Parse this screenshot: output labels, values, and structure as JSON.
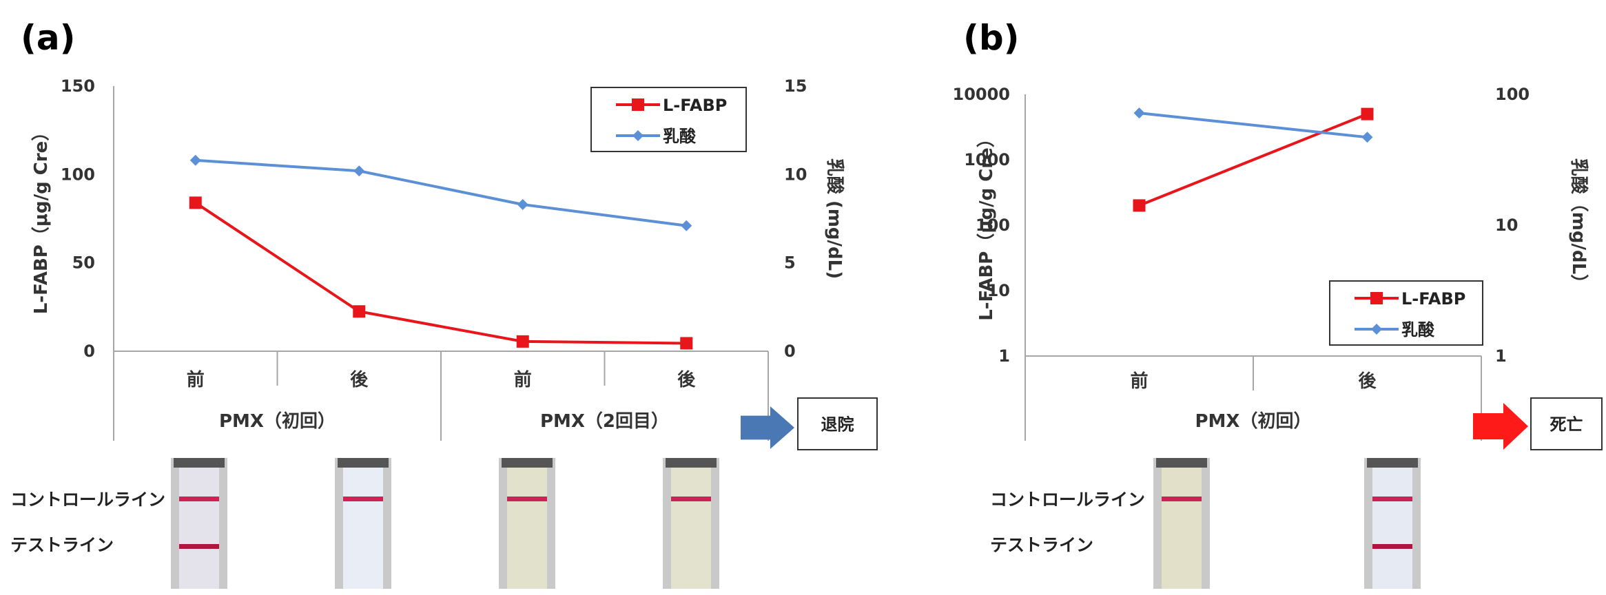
{
  "colors": {
    "lfabp": "#e8161b",
    "lactate": "#5b8fd6",
    "arrow_a": "#4a78b5",
    "arrow_b": "#ff1a1a",
    "axis": "#a6a6a6"
  },
  "strip_labels": {
    "control": "コントロールライン",
    "test": "テストライン"
  },
  "chart_data": [
    {
      "panel": "(a)",
      "type": "line",
      "categories": [
        "前",
        "後",
        "前",
        "後"
      ],
      "groups": [
        {
          "label": "PMX（初回）",
          "span": [
            0,
            1
          ]
        },
        {
          "label": "PMX（2回目）",
          "span": [
            2,
            3
          ]
        }
      ],
      "ylabel": "L-FABP（μg/g Cre）",
      "ylabel2": "乳酸 (mg/dL)",
      "ylim": [
        0,
        150
      ],
      "ylim2": [
        0,
        15
      ],
      "yticks": [
        "0",
        "50",
        "100",
        "150"
      ],
      "yticks2": [
        "0",
        "5",
        "10",
        "15"
      ],
      "series": [
        {
          "name": "L-FABP",
          "axis": "left",
          "marker": "square",
          "values": [
            84,
            22.5,
            5.5,
            4.5
          ]
        },
        {
          "name": "乳酸",
          "axis": "right",
          "marker": "diamond",
          "values": [
            10.8,
            10.2,
            8.3,
            7.1
          ]
        }
      ],
      "legend": "top-right",
      "outcome": "退院",
      "strips": [
        {
          "tint": "#e4e2ea",
          "test_line": true
        },
        {
          "tint": "#e9edf6",
          "test_line": false
        },
        {
          "tint": "#e2e1cc",
          "test_line": false
        },
        {
          "tint": "#e3e2ce",
          "test_line": false
        }
      ]
    },
    {
      "panel": "(b)",
      "type": "line",
      "categories": [
        "前",
        "後"
      ],
      "groups": [
        {
          "label": "PMX（初回）",
          "span": [
            0,
            1
          ]
        }
      ],
      "ylabel": "L-FABP（μg/g Cre）",
      "ylabel2": "乳酸（mg/dL）",
      "yscale": "log",
      "ylim": [
        1,
        10000
      ],
      "ylim2": [
        1,
        100
      ],
      "yticks": [
        "1",
        "10",
        "100",
        "1000",
        "10000"
      ],
      "yticks2": [
        "1",
        "10",
        "100"
      ],
      "series": [
        {
          "name": "L-FABP",
          "axis": "left",
          "marker": "square",
          "values": [
            200,
            5000
          ]
        },
        {
          "name": "乳酸",
          "axis": "right",
          "marker": "diamond",
          "values": [
            72,
            47
          ]
        }
      ],
      "legend": "bottom-right",
      "outcome": "死亡",
      "strips": [
        {
          "tint": "#e2e0c8",
          "test_line": false
        },
        {
          "tint": "#e6ebf3",
          "test_line": true
        }
      ]
    }
  ]
}
